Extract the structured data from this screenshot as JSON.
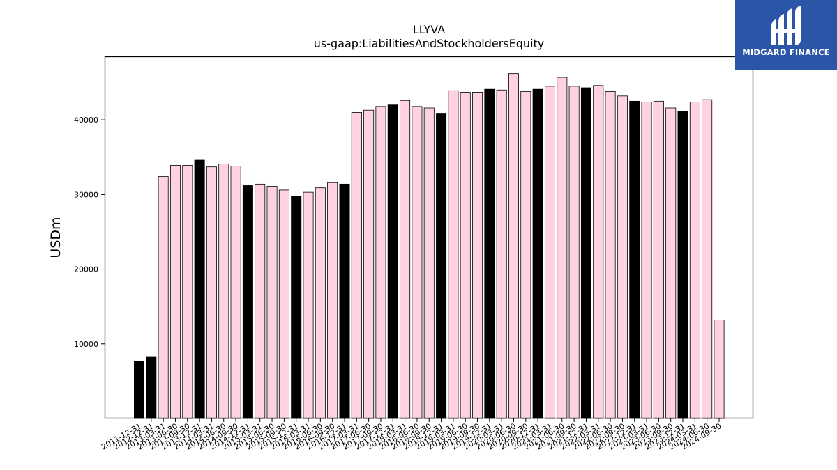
{
  "chart_data": {
    "type": "bar",
    "title": "LLYVA",
    "subtitle": "us-gaap:LiabilitiesAndStockholdersEquity",
    "xlabel": "",
    "ylabel": "USDm",
    "ylim": [
      0,
      48500
    ],
    "yticks": [
      10000,
      20000,
      30000,
      40000
    ],
    "grid": false,
    "categories": [
      "2011-12-31",
      "2012-12-31",
      "2013-03-31",
      "2013-06-30",
      "2013-09-30",
      "2013-12-31",
      "2014-03-31",
      "2014-06-30",
      "2014-09-30",
      "2014-12-31",
      "2015-03-31",
      "2015-06-30",
      "2015-09-30",
      "2015-12-31",
      "2016-03-31",
      "2016-06-30",
      "2016-09-30",
      "2016-12-31",
      "2017-03-31",
      "2017-06-30",
      "2017-09-30",
      "2017-12-31",
      "2018-03-31",
      "2018-06-30",
      "2018-09-30",
      "2018-12-31",
      "2019-03-31",
      "2019-06-30",
      "2019-09-30",
      "2019-12-31",
      "2020-03-31",
      "2020-06-30",
      "2020-09-30",
      "2020-12-31",
      "2021-03-31",
      "2021-06-30",
      "2021-09-30",
      "2021-12-31",
      "2022-03-31",
      "2022-06-30",
      "2022-09-30",
      "2022-12-31",
      "2023-03-31",
      "2023-06-30",
      "2023-09-30",
      "2023-12-31",
      "2024-03-31",
      "2024-06-30",
      "2024-09-30"
    ],
    "values": [
      7700,
      8300,
      32400,
      33900,
      33900,
      34600,
      33700,
      34100,
      33800,
      31200,
      31400,
      31100,
      30600,
      29800,
      30300,
      30900,
      31600,
      31400,
      41000,
      41300,
      41800,
      42000,
      42600,
      41800,
      41600,
      40800,
      43900,
      43700,
      43700,
      44100,
      44000,
      46200,
      43800,
      44100,
      44500,
      45700,
      44500,
      44300,
      44600,
      43800,
      43200,
      42500,
      42400,
      42500,
      41600,
      41100,
      42400,
      42700,
      13200
    ],
    "bar_colors": [
      "#000000",
      "#000000",
      "#ffd1e3",
      "#ffd1e3",
      "#ffd1e3",
      "#000000",
      "#ffd1e3",
      "#ffd1e3",
      "#ffd1e3",
      "#000000",
      "#ffd1e3",
      "#ffd1e3",
      "#ffd1e3",
      "#000000",
      "#ffd1e3",
      "#ffd1e3",
      "#ffd1e3",
      "#000000",
      "#ffd1e3",
      "#ffd1e3",
      "#ffd1e3",
      "#000000",
      "#ffd1e3",
      "#ffd1e3",
      "#ffd1e3",
      "#000000",
      "#ffd1e3",
      "#ffd1e3",
      "#ffd1e3",
      "#000000",
      "#ffd1e3",
      "#ffd1e3",
      "#ffd1e3",
      "#000000",
      "#ffd1e3",
      "#ffd1e3",
      "#ffd1e3",
      "#000000",
      "#ffd1e3",
      "#ffd1e3",
      "#ffd1e3",
      "#000000",
      "#ffd1e3",
      "#ffd1e3",
      "#ffd1e3",
      "#000000",
      "#ffd1e3",
      "#ffd1e3",
      "#ffd1e3"
    ]
  },
  "logo": {
    "text": "MIDGARD FINANCE",
    "background": "#2b56a8"
  }
}
